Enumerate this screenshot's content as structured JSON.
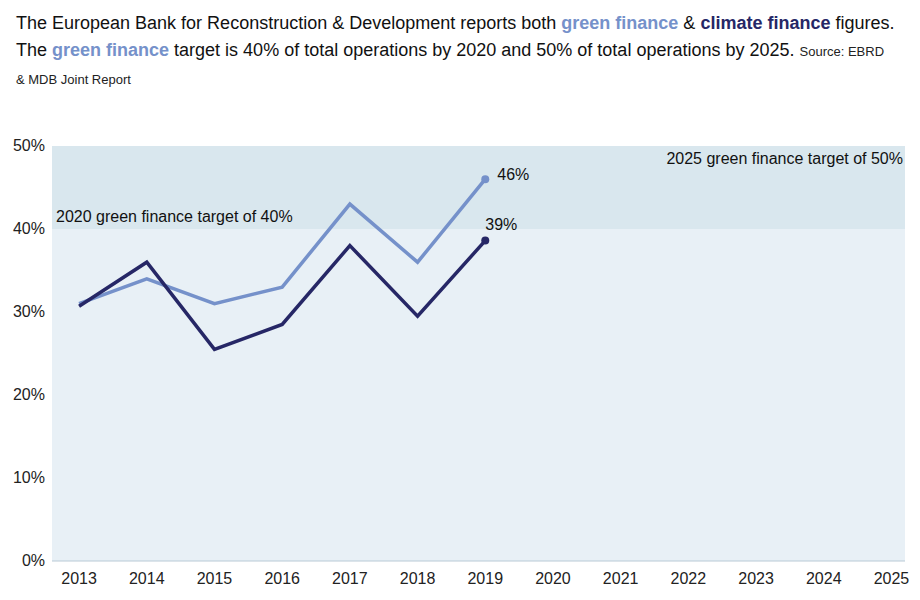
{
  "chart_data": {
    "type": "line",
    "title": "The European Bank for Reconstruction & Development reports both green finance & climate finance figures. The green finance target is 40% of total operations by 2020 and 50% of total operations by 2025.",
    "source": "Source: EBRD & MDB Joint Report",
    "x": [
      2013,
      2014,
      2015,
      2016,
      2017,
      2018,
      2019
    ],
    "series": [
      {
        "name": "green finance",
        "color": "#7591ca",
        "values": [
          31,
          34,
          31,
          33,
          43,
          36,
          46
        ],
        "value_labels": [
          null,
          null,
          null,
          null,
          null,
          null,
          "46%"
        ]
      },
      {
        "name": "climate finance",
        "color": "#262766",
        "values": [
          30.7,
          36,
          25.5,
          28.5,
          38,
          29.5,
          38.6
        ],
        "value_labels": [
          null,
          null,
          null,
          null,
          null,
          null,
          "39%"
        ]
      }
    ],
    "targets": [
      {
        "value": 40,
        "label": "2020 green finance target of 40%"
      },
      {
        "value": 50,
        "label": "2025 green finance target of 50%"
      }
    ],
    "xlim": [
      2012.6,
      2025.2
    ],
    "xticks": [
      2013,
      2014,
      2015,
      2016,
      2017,
      2018,
      2019,
      2020,
      2021,
      2022,
      2023,
      2024,
      2025
    ],
    "ylim": [
      0,
      50
    ],
    "yticks": [
      {
        "value": 0,
        "label": "0%"
      },
      {
        "value": 10,
        "label": "10%"
      },
      {
        "value": 20,
        "label": "20%"
      },
      {
        "value": 30,
        "label": "30%"
      },
      {
        "value": 40,
        "label": "40%"
      },
      {
        "value": 50,
        "label": "50%"
      }
    ],
    "grid": false,
    "data_labels": true,
    "marker": "circle"
  }
}
